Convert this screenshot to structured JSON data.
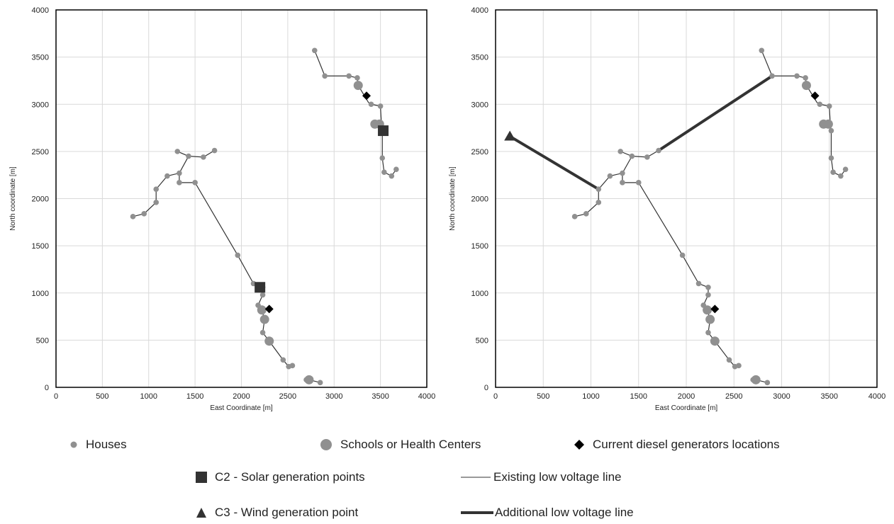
{
  "chart_data": [
    {
      "type": "scatter",
      "title": "",
      "xlabel": "East Coordinate [m]",
      "ylabel": "North coordinate [m]",
      "xlim": [
        0,
        4000
      ],
      "ylim": [
        0,
        4000
      ],
      "xticks": [
        "0",
        "500",
        "1000",
        "1500",
        "2000",
        "2500",
        "3000",
        "3500",
        "4000"
      ],
      "yticks": [
        "0",
        "500",
        "1000",
        "1500",
        "2000",
        "2500",
        "3000",
        "3500",
        "4000"
      ],
      "grid": true,
      "existing_lines": [
        [
          [
            830,
            1810
          ],
          [
            950,
            1840
          ],
          [
            1080,
            1960
          ],
          [
            1080,
            2100
          ],
          [
            1200,
            2240
          ],
          [
            1330,
            2270
          ],
          [
            1430,
            2450
          ],
          [
            1590,
            2440
          ],
          [
            1710,
            2510
          ]
        ],
        [
          [
            1310,
            2500
          ],
          [
            1430,
            2450
          ]
        ],
        [
          [
            1330,
            2270
          ],
          [
            1330,
            2170
          ],
          [
            1500,
            2170
          ],
          [
            1960,
            1400
          ],
          [
            2130,
            1100
          ],
          [
            2230,
            1060
          ],
          [
            2230,
            980
          ],
          [
            2180,
            870
          ],
          [
            2220,
            820
          ],
          [
            2250,
            720
          ],
          [
            2230,
            580
          ],
          [
            2300,
            490
          ],
          [
            2450,
            290
          ],
          [
            2510,
            220
          ],
          [
            2550,
            230
          ]
        ],
        [
          [
            2730,
            80
          ],
          [
            2850,
            50
          ]
        ],
        [
          [
            2790,
            3570
          ],
          [
            2900,
            3300
          ],
          [
            3160,
            3300
          ],
          [
            3250,
            3280
          ],
          [
            3260,
            3200
          ],
          [
            3370,
            3020
          ],
          [
            3400,
            3000
          ],
          [
            3500,
            2980
          ],
          [
            3510,
            2800
          ],
          [
            3520,
            2720
          ],
          [
            3520,
            2430
          ],
          [
            3540,
            2280
          ],
          [
            3620,
            2240
          ],
          [
            3670,
            2310
          ]
        ]
      ],
      "additional_lines": [],
      "houses": [
        [
          830,
          1810
        ],
        [
          950,
          1840
        ],
        [
          1080,
          1960
        ],
        [
          1080,
          2100
        ],
        [
          1200,
          2240
        ],
        [
          1310,
          2500
        ],
        [
          1330,
          2270
        ],
        [
          1330,
          2170
        ],
        [
          1430,
          2450
        ],
        [
          1500,
          2170
        ],
        [
          1590,
          2440
        ],
        [
          1710,
          2510
        ],
        [
          1960,
          1400
        ],
        [
          2130,
          1100
        ],
        [
          2230,
          1060
        ],
        [
          2230,
          980
        ],
        [
          2180,
          870
        ],
        [
          2230,
          580
        ],
        [
          2450,
          290
        ],
        [
          2510,
          220
        ],
        [
          2550,
          230
        ],
        [
          2700,
          80
        ],
        [
          2850,
          50
        ],
        [
          2790,
          3570
        ],
        [
          2900,
          3300
        ],
        [
          3160,
          3300
        ],
        [
          3250,
          3280
        ],
        [
          3400,
          3000
        ],
        [
          3500,
          2980
        ],
        [
          3520,
          2720
        ],
        [
          3520,
          2430
        ],
        [
          3540,
          2280
        ],
        [
          3620,
          2240
        ],
        [
          3670,
          2310
        ]
      ],
      "schools": [
        [
          2220,
          820
        ],
        [
          2250,
          720
        ],
        [
          2300,
          490
        ],
        [
          2730,
          80
        ],
        [
          3260,
          3200
        ],
        [
          3440,
          2790
        ],
        [
          3490,
          2790
        ]
      ],
      "diesel_generators": [
        [
          2300,
          830
        ],
        [
          3350,
          3090
        ]
      ],
      "solar_points": [
        [
          2200,
          1060
        ],
        [
          3530,
          2720
        ]
      ],
      "wind_points": []
    },
    {
      "type": "scatter",
      "title": "",
      "xlabel": "East Coordinate [m]",
      "ylabel": "North coordinate [m]",
      "xlim": [
        0,
        4000
      ],
      "ylim": [
        0,
        4000
      ],
      "xticks": [
        "0",
        "500",
        "1000",
        "1500",
        "2000",
        "2500",
        "3000",
        "3500",
        "4000"
      ],
      "yticks": [
        "0",
        "500",
        "1000",
        "1500",
        "2000",
        "2500",
        "3000",
        "3500",
        "4000"
      ],
      "grid": true,
      "existing_lines": [
        [
          [
            830,
            1810
          ],
          [
            950,
            1840
          ],
          [
            1080,
            1960
          ],
          [
            1080,
            2100
          ],
          [
            1200,
            2240
          ],
          [
            1330,
            2270
          ],
          [
            1430,
            2450
          ],
          [
            1590,
            2440
          ],
          [
            1710,
            2510
          ]
        ],
        [
          [
            1310,
            2500
          ],
          [
            1430,
            2450
          ]
        ],
        [
          [
            1330,
            2270
          ],
          [
            1330,
            2170
          ],
          [
            1500,
            2170
          ],
          [
            1960,
            1400
          ],
          [
            2130,
            1100
          ],
          [
            2230,
            1060
          ],
          [
            2230,
            980
          ],
          [
            2180,
            870
          ],
          [
            2220,
            820
          ],
          [
            2250,
            720
          ],
          [
            2230,
            580
          ],
          [
            2300,
            490
          ],
          [
            2450,
            290
          ],
          [
            2510,
            220
          ],
          [
            2550,
            230
          ]
        ],
        [
          [
            2730,
            80
          ],
          [
            2850,
            50
          ]
        ],
        [
          [
            2790,
            3570
          ],
          [
            2900,
            3300
          ],
          [
            3160,
            3300
          ],
          [
            3250,
            3280
          ],
          [
            3260,
            3200
          ],
          [
            3370,
            3020
          ],
          [
            3400,
            3000
          ],
          [
            3500,
            2980
          ],
          [
            3510,
            2800
          ],
          [
            3520,
            2720
          ],
          [
            3520,
            2430
          ],
          [
            3540,
            2280
          ],
          [
            3620,
            2240
          ],
          [
            3670,
            2310
          ]
        ]
      ],
      "additional_lines": [
        [
          [
            150,
            2660
          ],
          [
            1080,
            2100
          ]
        ],
        [
          [
            1710,
            2510
          ],
          [
            2900,
            3300
          ]
        ]
      ],
      "houses": [
        [
          830,
          1810
        ],
        [
          950,
          1840
        ],
        [
          1080,
          1960
        ],
        [
          1080,
          2100
        ],
        [
          1200,
          2240
        ],
        [
          1310,
          2500
        ],
        [
          1330,
          2270
        ],
        [
          1330,
          2170
        ],
        [
          1430,
          2450
        ],
        [
          1500,
          2170
        ],
        [
          1590,
          2440
        ],
        [
          1710,
          2510
        ],
        [
          1960,
          1400
        ],
        [
          2130,
          1100
        ],
        [
          2230,
          1060
        ],
        [
          2230,
          980
        ],
        [
          2180,
          870
        ],
        [
          2230,
          580
        ],
        [
          2450,
          290
        ],
        [
          2510,
          220
        ],
        [
          2550,
          230
        ],
        [
          2700,
          80
        ],
        [
          2850,
          50
        ],
        [
          2790,
          3570
        ],
        [
          2900,
          3300
        ],
        [
          3160,
          3300
        ],
        [
          3250,
          3280
        ],
        [
          3400,
          3000
        ],
        [
          3500,
          2980
        ],
        [
          3520,
          2720
        ],
        [
          3520,
          2430
        ],
        [
          3540,
          2280
        ],
        [
          3620,
          2240
        ],
        [
          3670,
          2310
        ]
      ],
      "schools": [
        [
          2220,
          820
        ],
        [
          2250,
          720
        ],
        [
          2300,
          490
        ],
        [
          2730,
          80
        ],
        [
          3260,
          3200
        ],
        [
          3440,
          2790
        ],
        [
          3490,
          2790
        ]
      ],
      "diesel_generators": [
        [
          2300,
          830
        ],
        [
          3350,
          3090
        ]
      ],
      "solar_points": [],
      "wind_points": [
        [
          150,
          2660
        ]
      ]
    }
  ],
  "colors": {
    "house": "#909090",
    "school": "#909090",
    "diesel": "#000000",
    "solar": "#333333",
    "wind": "#333333",
    "existing_line": "#333333",
    "additional_line": "#333333",
    "grid": "#d9d9d9",
    "axis": "#000000"
  },
  "legend": {
    "houses": "Houses",
    "schools": "Schools or Health Centers",
    "diesel": "Current diesel generators locations",
    "solar": "C2 - Solar generation points",
    "existing_line": "Existing low voltage line",
    "wind": "C3 - Wind generation point",
    "additional_line": "Additional low voltage line"
  }
}
